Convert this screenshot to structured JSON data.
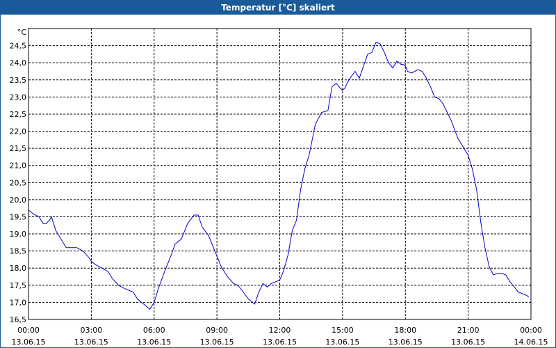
{
  "window": {
    "title": "Temperatur [°C] skaliert"
  },
  "colors": {
    "titlebar": "#1a5a98",
    "line": "#0000cc",
    "grid": "#000000"
  },
  "chart_data": {
    "type": "line",
    "title": "Temperatur [°C] skaliert",
    "ylabel": "°C",
    "xlabel": "",
    "ylim": [
      16.5,
      25.0
    ],
    "xlim": [
      0,
      24
    ],
    "grid": true,
    "x_ticks": [
      {
        "x": 0,
        "time": "00:00",
        "date": "13.06.15"
      },
      {
        "x": 3,
        "time": "03:00",
        "date": "13.06.15"
      },
      {
        "x": 6,
        "time": "06:00",
        "date": "13.06.15"
      },
      {
        "x": 9,
        "time": "09:00",
        "date": "13.06.15"
      },
      {
        "x": 12,
        "time": "12:00",
        "date": "13.06.15"
      },
      {
        "x": 15,
        "time": "15:00",
        "date": "13.06.15"
      },
      {
        "x": 18,
        "time": "18:00",
        "date": "13.06.15"
      },
      {
        "x": 21,
        "time": "21:00",
        "date": "13.06.15"
      },
      {
        "x": 24,
        "time": "00:00",
        "date": "14.06.15"
      }
    ],
    "y_ticks": [
      {
        "v": 16.5,
        "label": "16,5"
      },
      {
        "v": 17.0,
        "label": "17,0"
      },
      {
        "v": 17.5,
        "label": "17,5"
      },
      {
        "v": 18.0,
        "label": "18,0"
      },
      {
        "v": 18.5,
        "label": "18,5"
      },
      {
        "v": 19.0,
        "label": "19,0"
      },
      {
        "v": 19.5,
        "label": "19,5"
      },
      {
        "v": 20.0,
        "label": "20,0"
      },
      {
        "v": 20.5,
        "label": "20,5"
      },
      {
        "v": 21.0,
        "label": "21,0"
      },
      {
        "v": 21.5,
        "label": "21,5"
      },
      {
        "v": 22.0,
        "label": "22,0"
      },
      {
        "v": 22.5,
        "label": "22,5"
      },
      {
        "v": 23.0,
        "label": "23,0"
      },
      {
        "v": 23.5,
        "label": "23,5"
      },
      {
        "v": 24.0,
        "label": "24,0"
      },
      {
        "v": 24.5,
        "label": "24,5"
      }
    ],
    "series": [
      {
        "x": [
          0.0,
          0.2,
          0.5,
          0.7,
          0.85,
          1.0,
          1.1,
          1.3,
          1.6,
          1.8,
          2.0,
          2.3,
          2.6,
          2.9,
          3.0,
          3.2,
          3.5,
          3.8,
          4.0,
          4.3,
          4.6,
          5.0,
          5.2,
          5.5,
          5.8,
          6.0,
          6.2,
          6.5,
          6.8,
          7.0,
          7.3,
          7.6,
          7.9,
          8.1,
          8.3,
          8.6,
          8.9,
          9.2,
          9.5,
          9.8,
          10.0,
          10.2,
          10.5,
          10.8,
          11.0,
          11.2,
          11.4,
          11.6,
          11.8,
          12.0,
          12.2,
          12.4,
          12.6,
          12.8,
          13.0,
          13.2,
          13.4,
          13.7,
          14.0,
          14.3,
          14.5,
          14.7,
          14.9,
          15.0,
          15.1,
          15.3,
          15.6,
          15.8,
          16.0,
          16.2,
          16.4,
          16.6,
          16.8,
          17.0,
          17.2,
          17.4,
          17.6,
          17.8,
          17.9,
          18.0,
          18.1,
          18.3,
          18.6,
          18.8,
          19.0,
          19.2,
          19.4,
          19.6,
          19.8,
          20.0,
          20.2,
          20.5,
          20.8,
          21.0,
          21.2,
          21.4,
          21.6,
          21.8,
          22.0,
          22.2,
          22.4,
          22.6,
          22.8,
          23.0,
          23.2,
          23.4,
          23.6,
          23.8,
          23.9
        ],
        "y": [
          19.7,
          19.6,
          19.5,
          19.3,
          19.3,
          19.4,
          19.5,
          19.1,
          18.8,
          18.6,
          18.6,
          18.6,
          18.5,
          18.3,
          18.2,
          18.1,
          18.0,
          17.9,
          17.7,
          17.5,
          17.4,
          17.3,
          17.1,
          16.95,
          16.8,
          17.0,
          17.4,
          17.9,
          18.35,
          18.7,
          18.85,
          19.3,
          19.55,
          19.55,
          19.2,
          18.95,
          18.5,
          18.05,
          17.75,
          17.55,
          17.5,
          17.35,
          17.1,
          16.95,
          17.3,
          17.55,
          17.45,
          17.55,
          17.6,
          17.65,
          17.95,
          18.4,
          19.1,
          19.4,
          20.3,
          20.9,
          21.3,
          22.2,
          22.55,
          22.6,
          23.3,
          23.4,
          23.25,
          23.2,
          23.25,
          23.5,
          23.75,
          23.55,
          23.9,
          24.25,
          24.3,
          24.6,
          24.55,
          24.3,
          24.0,
          23.85,
          24.05,
          23.95,
          23.95,
          23.9,
          23.75,
          23.7,
          23.8,
          23.75,
          23.55,
          23.3,
          23.0,
          22.95,
          22.8,
          22.55,
          22.3,
          21.8,
          21.5,
          21.3,
          20.9,
          20.3,
          19.35,
          18.6,
          18.05,
          17.8,
          17.85,
          17.85,
          17.8,
          17.6,
          17.45,
          17.3,
          17.25,
          17.2,
          17.15
        ]
      }
    ]
  }
}
